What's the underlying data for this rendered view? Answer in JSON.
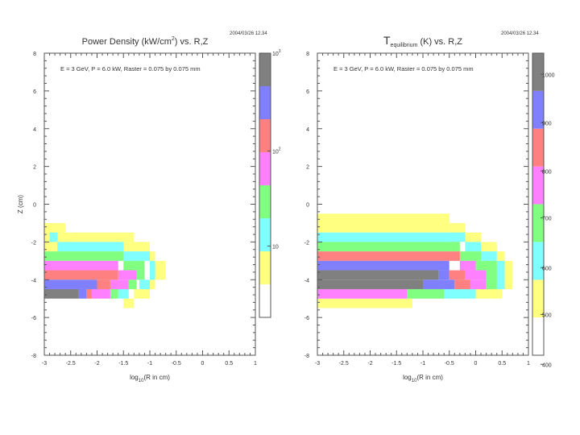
{
  "chart_data": [
    {
      "type": "heatmap",
      "timestamp": "2004/03/26   12.34",
      "title_parts": {
        "before_sup": "Power Density (kW/cm",
        "sup": "2",
        "after_sup": ") vs. R,Z"
      },
      "annotation": "E = 3 GeV, P = 6.0 kW, Raster = 0.075 by 0.075 mm",
      "xlabel_parts": {
        "base": "log",
        "sub": "10",
        "rest": "(R in cm)"
      },
      "ylabel": "Z (cm)",
      "xlim": [
        -3,
        1
      ],
      "ylim": [
        -8,
        8
      ],
      "xticks": [
        -3,
        -2.5,
        -2,
        -1.5,
        -1,
        -0.5,
        0,
        0.5,
        1
      ],
      "xtick_labels": [
        "-3",
        "-2.5",
        "-2",
        "-1.5",
        "-1",
        "-0.5",
        "0",
        "0.5",
        "1"
      ],
      "yticks": [
        8,
        6,
        4,
        2,
        0,
        -2,
        -4,
        -6,
        -8
      ],
      "ytick_labels": [
        "8",
        "6",
        "4",
        "2",
        "0",
        "-2",
        "-4",
        "-6",
        "-8"
      ],
      "colorbar": {
        "colors": [
          "#ffff80",
          "#80ffff",
          "#80ff80",
          "#ff80ff",
          "#ff8080",
          "#8080ff",
          "#808080"
        ],
        "bottom_white": true,
        "labels": [
          {
            "base": "10",
            "sup": "3",
            "level": 1.0
          },
          {
            "base": "10",
            "sup": "2",
            "level": 0.63
          },
          {
            "base": "10",
            "sup": "",
            "level": 0.27
          }
        ]
      },
      "cells": [
        {
          "x0": -3.0,
          "x1": -2.6,
          "z0": -1.0,
          "z1": -2.0,
          "color": "#ffff80"
        },
        {
          "x0": -2.75,
          "x1": -1.3,
          "z0": -1.5,
          "z1": -2.0,
          "color": "#ffff80"
        },
        {
          "x0": -3.0,
          "x1": -1.0,
          "z0": -2.0,
          "z1": -2.5,
          "color": "#ffff80"
        },
        {
          "x0": -1.0,
          "x1": -0.9,
          "z0": -2.5,
          "z1": -3.0,
          "color": "#ffff80"
        },
        {
          "x0": -0.9,
          "x1": -0.7,
          "z0": -3.0,
          "z1": -4.0,
          "color": "#ffff80"
        },
        {
          "x0": -1.0,
          "x1": -0.9,
          "z0": -4.0,
          "z1": -4.5,
          "color": "#ffff80"
        },
        {
          "x0": -1.3,
          "x1": -1.0,
          "z0": -4.5,
          "z1": -5.0,
          "color": "#ffff80"
        },
        {
          "x0": -1.5,
          "x1": -1.3,
          "z0": -5.0,
          "z1": -5.5,
          "color": "#ffff80"
        },
        {
          "x0": -2.9,
          "x1": -2.75,
          "z0": -1.5,
          "z1": -2.0,
          "color": "#80ffff"
        },
        {
          "x0": -2.75,
          "x1": -1.5,
          "z0": -2.0,
          "z1": -2.5,
          "color": "#80ffff"
        },
        {
          "x0": -1.5,
          "x1": -1.0,
          "z0": -2.5,
          "z1": -3.0,
          "color": "#80ffff"
        },
        {
          "x0": -1.0,
          "x1": -0.9,
          "z0": -3.0,
          "z1": -4.0,
          "color": "#80ffff"
        },
        {
          "x0": -1.2,
          "x1": -1.0,
          "z0": -4.0,
          "z1": -4.5,
          "color": "#80ffff"
        },
        {
          "x0": -1.6,
          "x1": -1.4,
          "z0": -4.5,
          "z1": -5.0,
          "color": "#80ffff"
        },
        {
          "x0": -3.0,
          "x1": -1.5,
          "z0": -2.5,
          "z1": -3.0,
          "color": "#80ff80"
        },
        {
          "x0": -1.5,
          "x1": -1.1,
          "z0": -3.0,
          "z1": -3.5,
          "color": "#80ff80"
        },
        {
          "x0": -1.25,
          "x1": -1.1,
          "z0": -3.5,
          "z1": -4.0,
          "color": "#80ff80"
        },
        {
          "x0": -1.4,
          "x1": -1.25,
          "z0": -4.0,
          "z1": -4.5,
          "color": "#80ff80"
        },
        {
          "x0": -1.75,
          "x1": -1.6,
          "z0": -4.5,
          "z1": -5.0,
          "color": "#80ff80"
        },
        {
          "x0": -3.0,
          "x1": -1.6,
          "z0": -3.0,
          "z1": -3.5,
          "color": "#ff80ff"
        },
        {
          "x0": -1.6,
          "x1": -1.25,
          "z0": -3.5,
          "z1": -4.0,
          "color": "#ff80ff"
        },
        {
          "x0": -1.75,
          "x1": -1.4,
          "z0": -4.0,
          "z1": -4.5,
          "color": "#ff80ff"
        },
        {
          "x0": -2.1,
          "x1": -1.75,
          "z0": -4.5,
          "z1": -5.0,
          "color": "#ff80ff"
        },
        {
          "x0": -3.0,
          "x1": -1.6,
          "z0": -3.5,
          "z1": -4.0,
          "color": "#ff8080"
        },
        {
          "x0": -2.0,
          "x1": -1.75,
          "z0": -4.0,
          "z1": -4.5,
          "color": "#ff8080"
        },
        {
          "x0": -2.2,
          "x1": -2.1,
          "z0": -4.5,
          "z1": -5.0,
          "color": "#ff8080"
        },
        {
          "x0": -3.0,
          "x1": -2.0,
          "z0": -4.0,
          "z1": -4.5,
          "color": "#8080ff"
        },
        {
          "x0": -2.35,
          "x1": -2.2,
          "z0": -4.5,
          "z1": -5.0,
          "color": "#8080ff"
        },
        {
          "x0": -3.0,
          "x1": -2.35,
          "z0": -4.5,
          "z1": -5.0,
          "color": "#808080"
        }
      ]
    },
    {
      "type": "heatmap",
      "timestamp": "2004/03/26   12.34",
      "title_parts": {
        "base": "T",
        "sub": "equilibrium",
        "rest": " (K) vs. R,Z"
      },
      "annotation": "E = 3 GeV, P = 6.0 kW, Raster = 0.075 by 0.075 mm",
      "xlabel_parts": {
        "base": "log",
        "sub": "10",
        "rest": "(R in cm)"
      },
      "ylabel": "",
      "xlim": [
        -3,
        1
      ],
      "ylim": [
        -8,
        8
      ],
      "xticks": [
        -3,
        -2.5,
        -2,
        -1.5,
        -1,
        -0.5,
        0,
        0.5,
        1
      ],
      "xtick_labels": [
        "-3",
        "-2.5",
        "-2",
        "-1.5",
        "-1",
        "-0.5",
        "0",
        "0.5",
        "1"
      ],
      "yticks": [
        8,
        6,
        4,
        2,
        0,
        -2,
        -4,
        -6,
        -8
      ],
      "ytick_labels": [
        "8",
        "6",
        "4",
        "2",
        "0",
        "-2",
        "-4",
        "-6",
        "-8"
      ],
      "colorbar": {
        "colors": [
          "#ffff80",
          "#80ffff",
          "#80ff80",
          "#ff80ff",
          "#ff8080",
          "#8080ff",
          "#808080"
        ],
        "bottom_white": true,
        "labels": [
          {
            "base": "1000",
            "sup": "",
            "level": 0.93
          },
          {
            "base": "900",
            "sup": "",
            "level": 0.77
          },
          {
            "base": "800",
            "sup": "",
            "level": 0.61
          },
          {
            "base": "700",
            "sup": "",
            "level": 0.455
          },
          {
            "base": "600",
            "sup": "",
            "level": 0.29
          },
          {
            "base": "500",
            "sup": "",
            "level": 0.135
          },
          {
            "base": "400",
            "sup": "",
            "level": -0.03
          }
        ]
      },
      "cells": [
        {
          "x0": -3.0,
          "x1": -0.5,
          "z0": -0.5,
          "z1": -1.5,
          "color": "#ffff80"
        },
        {
          "x0": -0.5,
          "x1": -0.2,
          "z0": -1.0,
          "z1": -1.5,
          "color": "#ffff80"
        },
        {
          "x0": -0.5,
          "x1": 0.1,
          "z0": -1.5,
          "z1": -2.0,
          "color": "#ffff80"
        },
        {
          "x0": -0.2,
          "x1": 0.4,
          "z0": -2.0,
          "z1": -2.5,
          "color": "#ffff80"
        },
        {
          "x0": 0.4,
          "x1": 0.55,
          "z0": -2.5,
          "z1": -3.0,
          "color": "#ffff80"
        },
        {
          "x0": 0.55,
          "x1": 0.7,
          "z0": -3.0,
          "z1": -4.5,
          "color": "#ffff80"
        },
        {
          "x0": 0.0,
          "x1": 0.5,
          "z0": -4.5,
          "z1": -5.0,
          "color": "#ffff80"
        },
        {
          "x0": -3.0,
          "x1": -1.2,
          "z0": -5.0,
          "z1": -5.5,
          "color": "#ffff80"
        },
        {
          "x0": -3.0,
          "x1": -0.2,
          "z0": -1.5,
          "z1": -2.0,
          "color": "#80ffff"
        },
        {
          "x0": -0.2,
          "x1": 0.1,
          "z0": -2.0,
          "z1": -2.5,
          "color": "#80ffff"
        },
        {
          "x0": 0.1,
          "x1": 0.4,
          "z0": -2.5,
          "z1": -3.0,
          "color": "#80ffff"
        },
        {
          "x0": 0.4,
          "x1": 0.55,
          "z0": -3.0,
          "z1": -4.5,
          "color": "#80ffff"
        },
        {
          "x0": -0.6,
          "x1": 0.0,
          "z0": -4.5,
          "z1": -5.0,
          "color": "#80ffff"
        },
        {
          "x0": -3.0,
          "x1": -0.3,
          "z0": -2.0,
          "z1": -2.5,
          "color": "#80ff80"
        },
        {
          "x0": -0.3,
          "x1": 0.1,
          "z0": -2.5,
          "z1": -3.0,
          "color": "#80ff80"
        },
        {
          "x0": 0.0,
          "x1": 0.4,
          "z0": -3.0,
          "z1": -3.5,
          "color": "#80ff80"
        },
        {
          "x0": 0.2,
          "x1": 0.4,
          "z0": -3.5,
          "z1": -4.5,
          "color": "#80ff80"
        },
        {
          "x0": -1.3,
          "x1": -0.6,
          "z0": -4.5,
          "z1": -5.0,
          "color": "#80ff80"
        },
        {
          "x0": -3.0,
          "x1": -1.3,
          "z0": -4.5,
          "z1": -5.0,
          "color": "#ff80ff"
        },
        {
          "x0": -0.3,
          "x1": 0.0,
          "z0": -3.0,
          "z1": -3.5,
          "color": "#ff80ff"
        },
        {
          "x0": -0.2,
          "x1": 0.2,
          "z0": -3.5,
          "z1": -4.0,
          "color": "#ff80ff"
        },
        {
          "x0": -0.1,
          "x1": 0.2,
          "z0": -4.0,
          "z1": -4.5,
          "color": "#ff80ff"
        },
        {
          "x0": -3.0,
          "x1": -0.3,
          "z0": -2.5,
          "z1": -3.0,
          "color": "#ff8080"
        },
        {
          "x0": -0.5,
          "x1": -0.2,
          "z0": -3.5,
          "z1": -4.0,
          "color": "#ff8080"
        },
        {
          "x0": -0.4,
          "x1": -0.1,
          "z0": -4.0,
          "z1": -4.5,
          "color": "#ff8080"
        },
        {
          "x0": -3.0,
          "x1": -0.5,
          "z0": -3.0,
          "z1": -3.5,
          "color": "#8080ff"
        },
        {
          "x0": -1.0,
          "x1": -0.4,
          "z0": -4.0,
          "z1": -4.5,
          "color": "#8080ff"
        },
        {
          "x0": -3.0,
          "x1": -0.7,
          "z0": -3.5,
          "z1": -4.0,
          "color": "#808080"
        },
        {
          "x0": -3.0,
          "x1": -1.0,
          "z0": -4.0,
          "z1": -4.5,
          "color": "#808080"
        },
        {
          "x0": -0.7,
          "x1": -0.5,
          "z0": -3.5,
          "z1": -4.0,
          "color": "#8080ff"
        }
      ]
    }
  ]
}
